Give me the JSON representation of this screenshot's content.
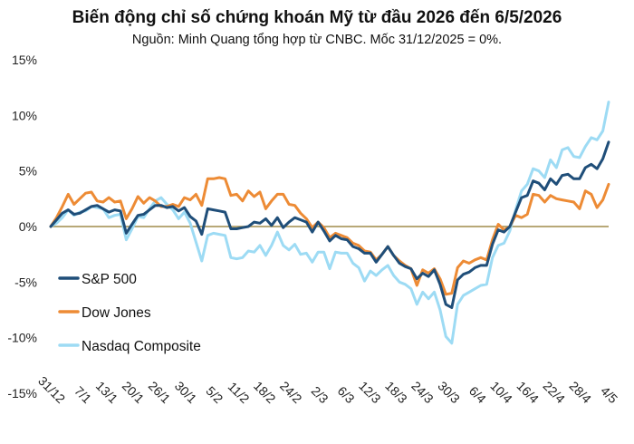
{
  "title": "Biến động chỉ số chứng khoán Mỹ từ đầu 2026 đến 6/5/2026",
  "subtitle": "Nguồn: Minh Quang tổng hợp từ CNBC. Mốc 31/12/2025 = 0%.",
  "colors": {
    "sp500": "#1f4e79",
    "dow": "#ed8b35",
    "nasdaq": "#9ddbf4",
    "zero_line": "#a08c4a"
  },
  "chart_data": {
    "type": "line",
    "title": "Biến động chỉ số chứng khoán Mỹ từ đầu 2026 đến 6/5/2026",
    "subtitle": "Nguồn: Minh Quang tổng hợp từ CNBC. Mốc 31/12/2025 = 0%.",
    "xlabel": "",
    "ylabel": "",
    "ylim": [
      -15,
      15
    ],
    "y_ticks": [
      15,
      10,
      5,
      0,
      -5,
      -10,
      -15
    ],
    "y_tick_labels": [
      "15%",
      "10%",
      "5%",
      "0%",
      "-5%",
      "-10%",
      "-15%"
    ],
    "x_tick_labels": [
      "31/12",
      "7/1",
      "13/1",
      "20/1",
      "26/1",
      "30/1",
      "5/2",
      "11/2",
      "18/2",
      "24/2",
      "2/3",
      "6/3",
      "12/3",
      "18/3",
      "24/3",
      "30/3",
      "6/4",
      "10/4",
      "16/4",
      "22/4",
      "28/4",
      "4/5"
    ],
    "grid": false,
    "legend_position": "bottom-left",
    "series": [
      {
        "name": "S&P 500",
        "key": "sp500",
        "values": [
          0,
          0.6,
          1.2,
          1.5,
          1.1,
          1.2,
          1.5,
          1.8,
          1.9,
          1.6,
          1.3,
          1.5,
          1.4,
          -0.6,
          0.2,
          1.0,
          1.1,
          1.5,
          1.9,
          1.9,
          1.7,
          1.8,
          1.4,
          1.7,
          0.9,
          0.5,
          -0.7,
          1.6,
          1.5,
          1.4,
          1.3,
          -0.2,
          -0.2,
          -0.1,
          0,
          0.4,
          0.3,
          0.7,
          0.1,
          0.8,
          -0.1,
          0.4,
          0.8,
          0.6,
          0.4,
          -0.5,
          0.4,
          -0.4,
          -1.3,
          -0.8,
          -1.1,
          -1.2,
          -1.8,
          -2.0,
          -2.4,
          -2.4,
          -3.2,
          -2.5,
          -1.8,
          -2.6,
          -3.3,
          -3.6,
          -3.8,
          -4.7,
          -4.2,
          -4.5,
          -3.9,
          -5.2,
          -7.0,
          -7.3,
          -4.8,
          -4.3,
          -4.1,
          -3.7,
          -3.5,
          -3.5,
          -1.6,
          -0.3,
          -0.5,
          0.0,
          1.3,
          2.6,
          2.8,
          4.1,
          3.9,
          3.3,
          4.3,
          3.8,
          4.6,
          4.7,
          4.3,
          4.3,
          5.3,
          5.6,
          5.2,
          6.1,
          7.6
        ]
      },
      {
        "name": "Dow Jones",
        "key": "dow",
        "values": [
          0,
          0.8,
          1.8,
          2.9,
          2.0,
          2.5,
          3.0,
          3.1,
          2.3,
          2.2,
          2.6,
          2.2,
          2.3,
          0.7,
          1.6,
          2.7,
          2.1,
          2.6,
          2.3,
          1.8,
          1.8,
          2.0,
          1.8,
          2.6,
          2.4,
          2.9,
          1.9,
          4.3,
          4.3,
          4.4,
          4.3,
          2.8,
          2.9,
          2.3,
          3.2,
          2.7,
          3.1,
          1.6,
          2.3,
          2.9,
          2.9,
          2.0,
          1.9,
          1.2,
          0.7,
          -0.1,
          0.4,
          -0.1,
          -1.0,
          -0.6,
          -0.8,
          -1.0,
          -1.5,
          -1.7,
          -2.2,
          -2.3,
          -3.0,
          -2.5,
          -1.8,
          -2.6,
          -3.1,
          -3.5,
          -3.8,
          -5.3,
          -3.9,
          -4.2,
          -3.8,
          -4.7,
          -6.1,
          -6.0,
          -3.7,
          -3.1,
          -3.3,
          -3.0,
          -2.8,
          -3.0,
          -1.2,
          0.2,
          -0.3,
          0.0,
          1.0,
          0.8,
          1.1,
          2.9,
          2.8,
          2.2,
          2.8,
          2.5,
          2.4,
          2.3,
          2.2,
          1.6,
          3.2,
          2.9,
          1.7,
          2.4,
          3.8
        ]
      },
      {
        "name": "Nasdaq Composite",
        "key": "nasdaq",
        "values": [
          0,
          0.3,
          0.8,
          1.5,
          1.0,
          1.3,
          1.4,
          1.8,
          1.7,
          1.6,
          0.8,
          1.0,
          1.1,
          -1.2,
          -0.2,
          0.9,
          0.8,
          1.6,
          2.3,
          2.6,
          2.0,
          1.5,
          0.7,
          1.3,
          0.3,
          -1.4,
          -3.1,
          -0.8,
          -0.6,
          -0.7,
          -0.8,
          -2.8,
          -2.9,
          -2.8,
          -2.2,
          -2.3,
          -1.7,
          -2.6,
          -1.7,
          -0.5,
          -1.7,
          -2.1,
          -1.6,
          -2.5,
          -2.4,
          -3.2,
          -2.3,
          -2.3,
          -3.8,
          -2.3,
          -2.4,
          -2.4,
          -3.3,
          -3.7,
          -4.9,
          -4.0,
          -4.4,
          -3.9,
          -3.5,
          -4.4,
          -5.0,
          -5.2,
          -5.6,
          -7.0,
          -5.9,
          -6.5,
          -5.9,
          -7.5,
          -9.9,
          -10.5,
          -7.0,
          -6.2,
          -5.9,
          -5.6,
          -5.3,
          -5.2,
          -2.8,
          -1.7,
          -1.5,
          -0.4,
          1.5,
          3.2,
          3.8,
          5.2,
          5.0,
          4.4,
          6.0,
          5.3,
          6.9,
          7.1,
          6.3,
          6.2,
          7.2,
          8.0,
          7.8,
          8.6,
          11.2
        ]
      }
    ]
  }
}
